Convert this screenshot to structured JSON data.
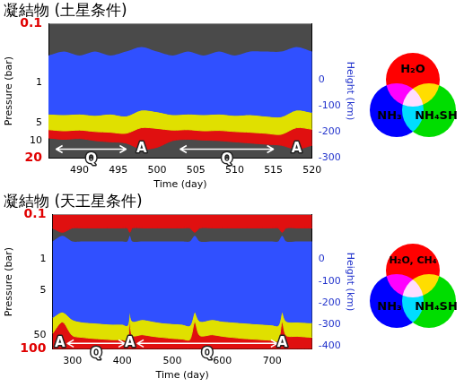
{
  "chart_data": [
    {
      "type": "area",
      "title": "凝結物 (土星条件)",
      "xlabel": "Time (day)",
      "ylabel": "Pressure (bar)",
      "y2label": "Height (km)",
      "x": [
        486,
        488,
        490,
        492,
        494,
        496,
        498,
        500,
        502,
        504,
        506,
        508,
        510,
        512,
        514,
        516,
        518,
        520
      ],
      "series": [
        {
          "color": "#3050ff",
          "top": [
            0.35,
            0.3,
            0.35,
            0.3,
            0.35,
            0.3,
            0.25,
            0.3,
            0.35,
            0.3,
            0.35,
            0.3,
            0.35,
            0.3,
            0.3,
            0.3,
            0.25,
            0.3
          ],
          "bottom": [
            3.5,
            3.6,
            3.5,
            3.7,
            3.5,
            3.8,
            3.0,
            3.2,
            3.6,
            3.5,
            3.6,
            3.5,
            3.7,
            3.6,
            3.8,
            3.9,
            3.0,
            3.3
          ]
        },
        {
          "color": "#e0e000",
          "top": [
            3.5,
            3.6,
            3.5,
            3.7,
            3.5,
            3.8,
            3.0,
            3.2,
            3.6,
            3.5,
            3.6,
            3.5,
            3.7,
            3.6,
            3.8,
            3.9,
            3.0,
            3.3
          ],
          "bottom": [
            6.5,
            6.8,
            6.6,
            7.0,
            7.2,
            7.5,
            6.0,
            6.2,
            6.6,
            6.5,
            6.8,
            6.7,
            7.0,
            7.2,
            7.5,
            7.8,
            6.0,
            6.4
          ]
        },
        {
          "color": "#e01010",
          "top": [
            6.5,
            6.8,
            6.6,
            7.0,
            7.2,
            7.5,
            6.0,
            6.2,
            6.6,
            6.5,
            6.8,
            6.7,
            7.0,
            7.2,
            7.5,
            7.8,
            6.0,
            6.4
          ],
          "bottom": [
            9,
            9.5,
            9.2,
            10,
            10.5,
            11,
            14,
            13,
            10,
            9.5,
            9.8,
            10,
            10.5,
            11,
            11.5,
            12,
            14,
            12
          ]
        }
      ],
      "xlim": [
        486,
        520
      ],
      "xticks": [
        490,
        495,
        500,
        505,
        510,
        515,
        520
      ],
      "log": "y",
      "ylim": [
        20,
        0.1
      ],
      "yticks": [
        0.1,
        1,
        5,
        10,
        20
      ],
      "y2lim": [
        -300,
        215
      ],
      "y2ticks": [
        0,
        -100,
        -200,
        -300
      ],
      "grid": false,
      "annotations": [
        {
          "text": "Q",
          "x": [
            487,
            496
          ],
          "y": 14
        },
        {
          "text": "A",
          "x": 498,
          "y": 14
        },
        {
          "text": "Q",
          "x": [
            503,
            515
          ],
          "y": 14
        },
        {
          "text": "A",
          "x": 518,
          "y": 14
        }
      ],
      "venn": [
        {
          "label": "H₂O",
          "color": "#ff0000"
        },
        {
          "label": "NH₃",
          "color": "#0000ff"
        },
        {
          "label": "NH₄SH",
          "color": "#00dd00"
        }
      ]
    },
    {
      "type": "area",
      "title": "凝結物 (天王星条件)",
      "xlabel": "Time (day)",
      "ylabel": "Pressure (bar)",
      "y2label": "Height (km)",
      "x": [
        260,
        280,
        300,
        320,
        340,
        360,
        380,
        400,
        410,
        415,
        420,
        440,
        460,
        480,
        500,
        520,
        535,
        545,
        555,
        580,
        600,
        620,
        640,
        660,
        680,
        700,
        712,
        720,
        728,
        750,
        780
      ],
      "series": [
        {
          "color": "#e01010",
          "top": [
            0.1,
            0.1,
            0.1,
            0.1,
            0.1,
            0.1,
            0.1,
            0.1,
            0.1,
            0.1,
            0.1,
            0.1,
            0.1,
            0.1,
            0.1,
            0.1,
            0.1,
            0.1,
            0.1,
            0.1,
            0.1,
            0.1,
            0.1,
            0.1,
            0.1,
            0.1,
            0.1,
            0.1,
            0.1,
            0.1,
            0.1
          ],
          "bottom": [
            0.2,
            0.25,
            0.2,
            0.2,
            0.2,
            0.2,
            0.2,
            0.2,
            0.2,
            0.25,
            0.2,
            0.2,
            0.2,
            0.2,
            0.2,
            0.2,
            0.2,
            0.25,
            0.2,
            0.2,
            0.2,
            0.2,
            0.2,
            0.2,
            0.2,
            0.2,
            0.2,
            0.25,
            0.2,
            0.2,
            0.2
          ]
        },
        {
          "color": "#3050ff",
          "top": [
            0.4,
            0.3,
            0.4,
            0.4,
            0.4,
            0.4,
            0.4,
            0.4,
            0.4,
            0.3,
            0.4,
            0.4,
            0.4,
            0.4,
            0.4,
            0.4,
            0.4,
            0.3,
            0.4,
            0.4,
            0.4,
            0.4,
            0.4,
            0.4,
            0.4,
            0.4,
            0.4,
            0.3,
            0.4,
            0.4,
            0.4
          ],
          "bottom": [
            20,
            15,
            22,
            25,
            26,
            27,
            28,
            28,
            30,
            15,
            24,
            22,
            24,
            26,
            27,
            28,
            30,
            15,
            24,
            22,
            24,
            25,
            26,
            27,
            28,
            29,
            30,
            15,
            24,
            25,
            26
          ]
        },
        {
          "color": "#e0e000",
          "top": [
            20,
            15,
            22,
            25,
            26,
            27,
            28,
            28,
            30,
            15,
            24,
            22,
            24,
            26,
            27,
            28,
            30,
            15,
            24,
            22,
            24,
            25,
            26,
            27,
            28,
            29,
            30,
            15,
            24,
            25,
            26
          ],
          "bottom": [
            45,
            25,
            50,
            55,
            58,
            60,
            62,
            62,
            65,
            25,
            50,
            48,
            52,
            55,
            58,
            60,
            62,
            25,
            50,
            48,
            52,
            55,
            58,
            60,
            62,
            64,
            66,
            25,
            50,
            52,
            55
          ]
        },
        {
          "color": "#e01010",
          "top": [
            45,
            25,
            50,
            55,
            58,
            60,
            62,
            62,
            65,
            25,
            50,
            48,
            52,
            55,
            58,
            60,
            62,
            25,
            50,
            48,
            52,
            55,
            58,
            60,
            62,
            64,
            66,
            25,
            50,
            52,
            55
          ],
          "bottom": [
            100,
            100,
            100,
            100,
            100,
            100,
            100,
            100,
            100,
            100,
            100,
            100,
            100,
            100,
            100,
            100,
            100,
            100,
            100,
            100,
            100,
            100,
            100,
            100,
            100,
            100,
            100,
            100,
            100,
            100,
            100
          ]
        }
      ],
      "xlim": [
        260,
        780
      ],
      "xticks": [
        300,
        400,
        500,
        600,
        700
      ],
      "log": "y",
      "ylim": [
        100,
        0.1
      ],
      "yticks": [
        0.1,
        1,
        5,
        50,
        100
      ],
      "y2lim": [
        -414,
        207
      ],
      "y2ticks": [
        0,
        -100,
        -200,
        -300,
        -400
      ],
      "grid": false,
      "annotations": [
        {
          "text": "A",
          "x": 275,
          "y": 75
        },
        {
          "text": "Q",
          "x": [
            290,
            405
          ],
          "y": 75
        },
        {
          "text": "A",
          "x": 415,
          "y": 75
        },
        {
          "text": "Q",
          "x": [
            430,
            710
          ],
          "y": 75
        },
        {
          "text": "A",
          "x": 720,
          "y": 75
        }
      ],
      "venn": [
        {
          "label": "H₂O, CH₄",
          "color": "#ff0000"
        },
        {
          "label": "NH₃",
          "color": "#0000ff"
        },
        {
          "label": "NH₄SH",
          "color": "#00dd00"
        }
      ]
    }
  ]
}
